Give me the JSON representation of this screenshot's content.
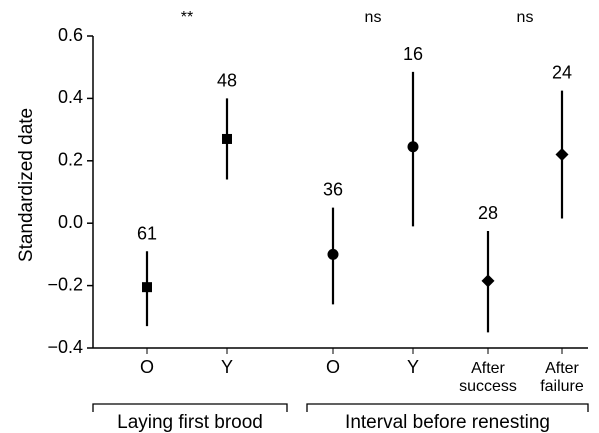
{
  "chart_data": {
    "type": "scatter",
    "ylabel": "Standardized date",
    "ylim": [
      -0.4,
      0.6
    ],
    "y_ticks": [
      0.6,
      0.4,
      0.2,
      0.0,
      -0.2,
      -0.4
    ],
    "y_tick_labels": [
      "0.6",
      "0.4",
      "0.2",
      "0.0",
      "−0.2",
      "−0.4"
    ],
    "grid": false,
    "categories": [
      "O",
      "Y",
      "O",
      "Y",
      "After success",
      "After failure"
    ],
    "points": [
      {
        "label": [
          "O"
        ],
        "marker": "square",
        "mean": -0.205,
        "lower": -0.33,
        "upper": -0.09,
        "n": "61"
      },
      {
        "label": [
          "Y"
        ],
        "marker": "square",
        "mean": 0.27,
        "lower": 0.14,
        "upper": 0.4,
        "n": "48"
      },
      {
        "label": [
          "O"
        ],
        "marker": "circle",
        "mean": -0.1,
        "lower": -0.26,
        "upper": 0.05,
        "n": "36"
      },
      {
        "label": [
          "Y"
        ],
        "marker": "circle",
        "mean": 0.245,
        "lower": -0.01,
        "upper": 0.485,
        "n": "16"
      },
      {
        "label": [
          "After",
          "success"
        ],
        "marker": "diamond",
        "mean": -0.185,
        "lower": -0.35,
        "upper": -0.025,
        "n": "28"
      },
      {
        "label": [
          "After",
          "failure"
        ],
        "marker": "diamond",
        "mean": 0.22,
        "lower": 0.015,
        "upper": 0.425,
        "n": "24"
      }
    ],
    "significance": [
      "**",
      "ns",
      "ns"
    ],
    "groups": [
      "Laying first brood",
      "Interval before renesting"
    ]
  }
}
